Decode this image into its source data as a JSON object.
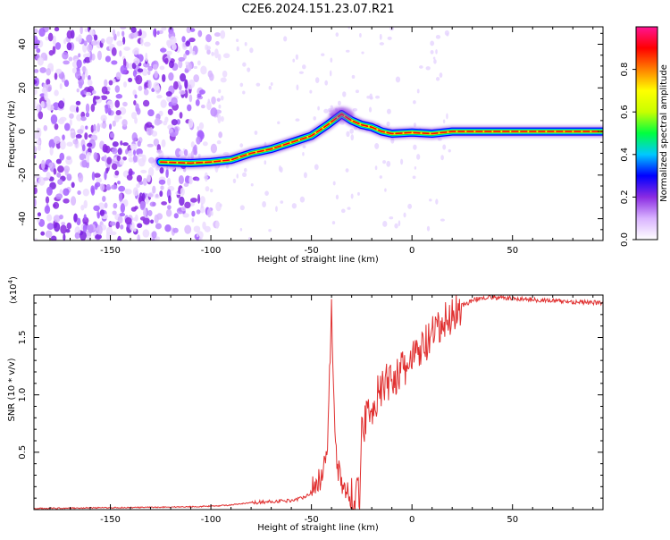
{
  "title": "C2E6.2024.151.23.07.R21",
  "chart_data": [
    {
      "type": "heatmap",
      "xlabel": "Height of straight line (km)",
      "ylabel": "Frequency (Hz)",
      "xlim": [
        -188,
        95
      ],
      "ylim": [
        -50,
        48
      ],
      "xticks": [
        -150,
        -100,
        -50,
        0,
        50
      ],
      "yticks": [
        -40,
        -20,
        0,
        20,
        40
      ],
      "noise_region_x": [
        -188,
        -110
      ],
      "ridge": [
        {
          "x": -125,
          "y": -14
        },
        {
          "x": -110,
          "y": -14.5
        },
        {
          "x": -100,
          "y": -14
        },
        {
          "x": -90,
          "y": -13
        },
        {
          "x": -80,
          "y": -10
        },
        {
          "x": -70,
          "y": -8
        },
        {
          "x": -60,
          "y": -5
        },
        {
          "x": -50,
          "y": -2
        },
        {
          "x": -42,
          "y": 3
        },
        {
          "x": -35,
          "y": 8
        },
        {
          "x": -30,
          "y": 5
        },
        {
          "x": -25,
          "y": 3
        },
        {
          "x": -20,
          "y": 2
        },
        {
          "x": -15,
          "y": 0
        },
        {
          "x": -10,
          "y": -1
        },
        {
          "x": 0,
          "y": -0.5
        },
        {
          "x": 10,
          "y": -1
        },
        {
          "x": 20,
          "y": 0
        },
        {
          "x": 95,
          "y": 0
        }
      ],
      "colorbar": {
        "label": "Normalized spectral amplitude",
        "ticks": [
          0.0,
          0.2,
          0.4,
          0.6,
          0.8
        ],
        "ticklabels": [
          "0.0",
          "0.2",
          "0.4",
          "0.6",
          "0.8"
        ],
        "colormap": [
          "#ffffff",
          "#d9b3ff",
          "#8a2be2",
          "#0000ff",
          "#00c8ff",
          "#00ff40",
          "#c8ff00",
          "#ffff00",
          "#ff8000",
          "#ff0000",
          "#ff1493"
        ]
      },
      "ridge_color": "#ff0000"
    },
    {
      "type": "line",
      "xlabel": "Height of straight line (km)",
      "ylabel": "SNR (10 * v/v)",
      "y_multiplier": "(x10^4)",
      "xlim": [
        -188,
        95
      ],
      "ylim": [
        0,
        1.87
      ],
      "xticks": [
        -150,
        -100,
        -50,
        0,
        50
      ],
      "yticks": [
        0.5,
        1.0,
        1.5
      ],
      "yticklabels": [
        "0.5",
        "1.0",
        "1.5"
      ],
      "color": "#e03030",
      "series": [
        {
          "x": [
            -188,
            -160,
            -130,
            -110,
            -100,
            -90,
            -80,
            -70,
            -60,
            -55,
            -50,
            -45,
            -42,
            -40,
            -38,
            -35,
            -30,
            -26,
            -25,
            -22,
            -20,
            -15,
            -10,
            -5,
            0,
            5,
            10,
            15,
            20,
            25,
            30,
            35,
            40,
            50,
            60,
            70,
            80,
            95
          ],
          "y": [
            0.01,
            0.015,
            0.02,
            0.025,
            0.03,
            0.04,
            0.06,
            0.07,
            0.08,
            0.1,
            0.15,
            0.3,
            0.6,
            1.75,
            0.5,
            0.2,
            0.12,
            0.1,
            0.7,
            0.85,
            0.9,
            1.05,
            1.15,
            1.2,
            1.3,
            1.4,
            1.5,
            1.6,
            1.7,
            1.78,
            1.82,
            1.85,
            1.85,
            1.84,
            1.83,
            1.82,
            1.81,
            1.8
          ]
        }
      ]
    }
  ]
}
